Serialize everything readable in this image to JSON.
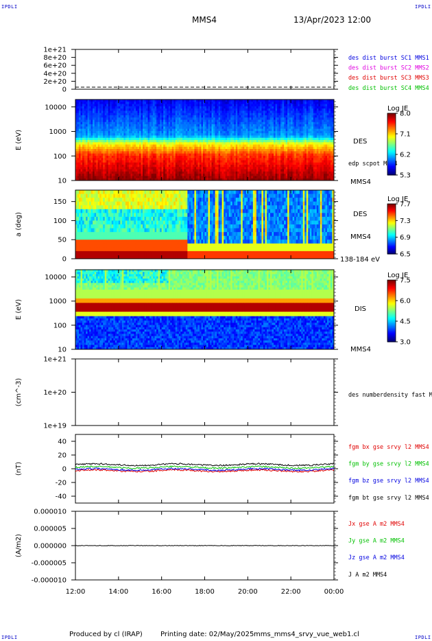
{
  "header": {
    "spacecraft": "MMS4",
    "datetime": "13/Apr/2023 12:00",
    "corner_labels": [
      "IPDLI",
      "IPDLI",
      "IPDLI",
      "IPDLI"
    ]
  },
  "footer": {
    "produced_by": "Produced by cl (IRAP)",
    "printing_date": "Printing date: 02/May/2025",
    "script": "mms_mms4_srvy_vue_web1.cl"
  },
  "colors": {
    "red": "#e00000",
    "green": "#00c000",
    "blue": "#0000e0",
    "magenta": "#e000e0",
    "black": "#000000"
  },
  "chart_data": [
    {
      "type": "line",
      "panel": "des dist burst counts",
      "yticks": [
        "1e+21",
        "8e+20",
        "6e+20",
        "4e+20",
        "2e+20",
        "0"
      ],
      "ylim": [
        0,
        1e+21
      ],
      "series": [
        {
          "name": "des dist burst SC1 MMS1",
          "color": "#0000e0"
        },
        {
          "name": "des dist burst SC2 MMS2",
          "color": "#e000e0"
        },
        {
          "name": "des dist burst SC3 MMS3",
          "color": "#e00000"
        },
        {
          "name": "des dist burst SC4 MMS4",
          "color": "#00c000"
        }
      ]
    },
    {
      "type": "heatmap",
      "panel": "des energy spectrogram",
      "ylabel": "E (eV)",
      "yscale": "log",
      "yticks": [
        "10000",
        "1000",
        "100",
        "10"
      ],
      "ylim": [
        10,
        20000
      ],
      "instrument_label": "DES",
      "overlay_label": "edp scpot MMS4",
      "sc_label": "MMS4",
      "colorbar": {
        "title": "Log JE",
        "ticks": [
          "8.0",
          "7.1",
          "6.2",
          "5.3"
        ],
        "range": [
          5.3,
          8.0
        ]
      }
    },
    {
      "type": "heatmap",
      "panel": "des pitch angle",
      "ylabel": "a (deg)",
      "yticks": [
        "150",
        "100",
        "50",
        "0"
      ],
      "ylim": [
        0,
        180
      ],
      "instrument_label": "DES",
      "sc_label": "MMS4",
      "energy_label": "138-184 eV",
      "colorbar": {
        "title": "Log JE",
        "ticks": [
          "7.7",
          "7.3",
          "6.9",
          "6.5"
        ],
        "range": [
          6.5,
          7.7
        ]
      }
    },
    {
      "type": "heatmap",
      "panel": "dis energy spectrogram",
      "ylabel": "E (eV)",
      "yscale": "log",
      "yticks": [
        "10000",
        "1000",
        "100",
        "10"
      ],
      "ylim": [
        10,
        20000
      ],
      "instrument_label": "DIS",
      "sc_label": "MMS4",
      "colorbar": {
        "title": "Log JE",
        "ticks": [
          "7.5",
          "6.0",
          "4.5",
          "3.0"
        ],
        "range": [
          3.0,
          7.5
        ]
      }
    },
    {
      "type": "line",
      "panel": "des number density",
      "ylabel": "(cm^-3)",
      "yscale": "log",
      "yticks": [
        "1e+21",
        "1e+20",
        "1e+19"
      ],
      "series": [
        {
          "name": "des numberdensity fast M",
          "color": "#000000"
        }
      ]
    },
    {
      "type": "line",
      "panel": "fgm magnetic field",
      "ylabel": "(nT)",
      "yticks": [
        "40",
        "20",
        "0",
        "-20",
        "-40"
      ],
      "ylim": [
        -50,
        50
      ],
      "series": [
        {
          "name": "fgm bx gse srvy l2 MMS4",
          "color": "#e00000",
          "approx_level": -3
        },
        {
          "name": "fgm by gse srvy l2 MMS4",
          "color": "#00c000",
          "approx_level": 2
        },
        {
          "name": "fgm bz gse srvy l2 MMS4",
          "color": "#0000e0",
          "approx_level": -1
        },
        {
          "name": "fgm bt gse srvy l2 MMS4",
          "color": "#000000",
          "approx_level": 6
        }
      ]
    },
    {
      "type": "line",
      "panel": "current density",
      "ylabel": "(A/m2)",
      "yticks": [
        "0.000010",
        "0.000005",
        "0.000000",
        "-0.000005",
        "-0.000010"
      ],
      "ylim": [
        -1e-05,
        1e-05
      ],
      "series": [
        {
          "name": "Jx gse A m2 MMS4",
          "color": "#e00000"
        },
        {
          "name": "Jy gse A m2 MMS4",
          "color": "#00c000"
        },
        {
          "name": "Jz gse A m2 MMS4",
          "color": "#0000e0"
        },
        {
          "name": "J A m2 MMS4",
          "color": "#000000"
        }
      ]
    }
  ],
  "xaxis": {
    "ticks": [
      "12:00",
      "14:00",
      "16:00",
      "18:00",
      "20:00",
      "22:00",
      "00:00"
    ]
  }
}
